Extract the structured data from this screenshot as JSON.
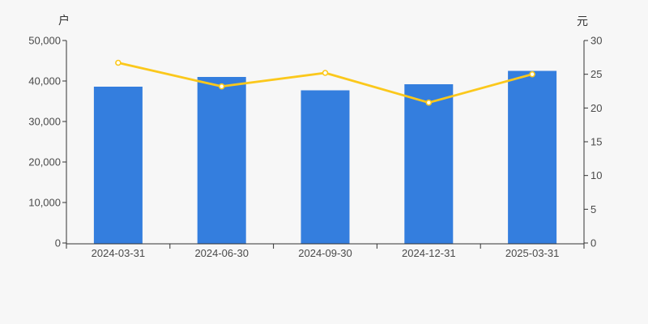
{
  "chart_data": {
    "type": "bar",
    "subtype": "bar-line-dual-axis",
    "title": "",
    "legend": false,
    "grid": false,
    "background": "#f7f7f7",
    "axis_color": "#333333",
    "tick_label_color": "#4a4a4a",
    "categories": [
      "2024-03-31",
      "2024-06-30",
      "2024-09-30",
      "2024-12-31",
      "2025-03-31"
    ],
    "series": [
      {
        "type": "bar",
        "axis": "left",
        "unit": "户",
        "color": "#347ede",
        "values": [
          38600,
          41000,
          37700,
          39200,
          42500
        ]
      },
      {
        "type": "line",
        "axis": "right",
        "unit": "元",
        "color": "#fbc81c",
        "marker_fill": "#ffffff",
        "values": [
          26.7,
          23.2,
          25.2,
          20.8,
          25.0
        ]
      }
    ],
    "left_axis": {
      "unit": "户",
      "min": 0,
      "max": 50000,
      "step": 10000,
      "tick_labels": [
        "0",
        "10,000",
        "20,000",
        "30,000",
        "40,000",
        "50,000"
      ]
    },
    "right_axis": {
      "unit": "元",
      "min": 0,
      "max": 30,
      "step": 5,
      "tick_labels": [
        "0",
        "5",
        "10",
        "15",
        "20",
        "25",
        "30"
      ]
    }
  }
}
